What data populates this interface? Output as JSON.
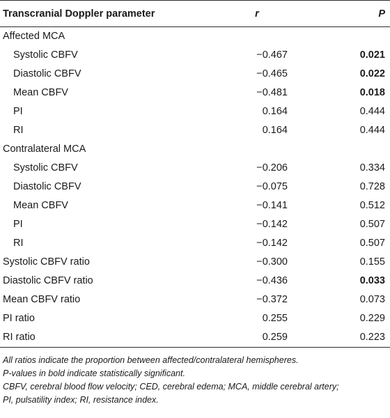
{
  "table": {
    "headers": {
      "parameter": "Transcranial Doppler parameter",
      "r": "r",
      "p": "P"
    },
    "rows": [
      {
        "label": "Affected MCA",
        "indent": false,
        "r": "",
        "p": "",
        "bold": false
      },
      {
        "label": "Systolic CBFV",
        "indent": true,
        "r": "−0.467",
        "p": "0.021",
        "bold": true
      },
      {
        "label": "Diastolic CBFV",
        "indent": true,
        "r": "−0.465",
        "p": "0.022",
        "bold": true
      },
      {
        "label": "Mean CBFV",
        "indent": true,
        "r": "−0.481",
        "p": "0.018",
        "bold": true
      },
      {
        "label": "PI",
        "indent": true,
        "r": "0.164",
        "p": "0.444",
        "bold": false
      },
      {
        "label": "RI",
        "indent": true,
        "r": "0.164",
        "p": "0.444",
        "bold": false
      },
      {
        "label": "Contralateral MCA",
        "indent": false,
        "r": "",
        "p": "",
        "bold": false
      },
      {
        "label": "Systolic CBFV",
        "indent": true,
        "r": "−0.206",
        "p": "0.334",
        "bold": false
      },
      {
        "label": "Diastolic CBFV",
        "indent": true,
        "r": "−0.075",
        "p": "0.728",
        "bold": false
      },
      {
        "label": "Mean CBFV",
        "indent": true,
        "r": "−0.141",
        "p": "0.512",
        "bold": false
      },
      {
        "label": "PI",
        "indent": true,
        "r": "−0.142",
        "p": "0.507",
        "bold": false
      },
      {
        "label": "RI",
        "indent": true,
        "r": "−0.142",
        "p": "0.507",
        "bold": false
      },
      {
        "label": "Systolic CBFV ratio",
        "indent": false,
        "r": "−0.300",
        "p": "0.155",
        "bold": false
      },
      {
        "label": "Diastolic CBFV ratio",
        "indent": false,
        "r": "−0.436",
        "p": "0.033",
        "bold": true
      },
      {
        "label": "Mean CBFV ratio",
        "indent": false,
        "r": "−0.372",
        "p": "0.073",
        "bold": false
      },
      {
        "label": "PI ratio",
        "indent": false,
        "r": "0.255",
        "p": "0.229",
        "bold": false
      },
      {
        "label": "RI ratio",
        "indent": false,
        "r": "0.259",
        "p": "0.223",
        "bold": false
      }
    ]
  },
  "footnotes": [
    "All ratios indicate the proportion between affected/contralateral hemispheres.",
    "P-values in bold indicate statistically significant.",
    "CBFV, cerebral blood flow velocity; CED, cerebral edema; MCA, middle cerebral artery;",
    "PI, pulsatility index; RI, resistance index."
  ]
}
